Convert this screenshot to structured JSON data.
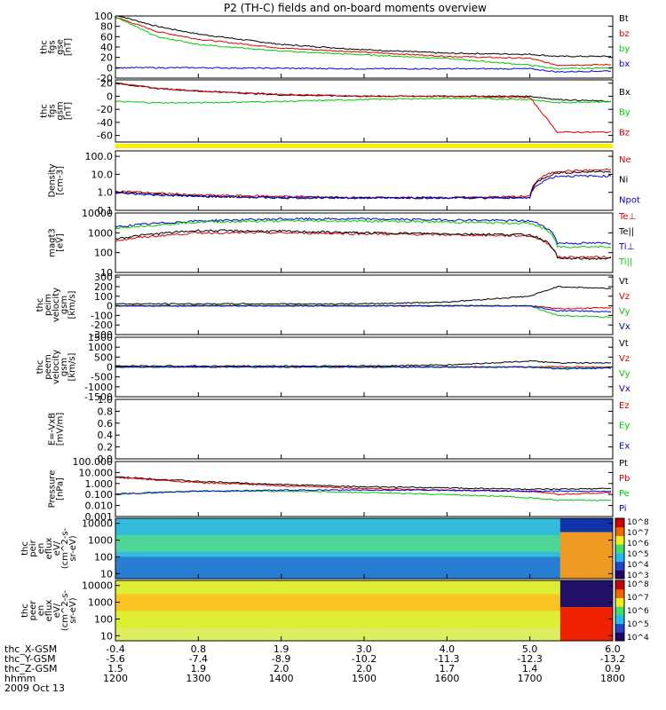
{
  "title": "P2 (TH-C) fields and on-board moments overview",
  "colors": {
    "black": "#000000",
    "red": "#dd0000",
    "green": "#00cc00",
    "blue": "#0000dd",
    "yellow": "#ffee00"
  },
  "chart_data": [
    {
      "type": "line",
      "panel": "fgs_gse",
      "ylabel": [
        "thc",
        "fgs",
        "gse",
        "[nT]"
      ],
      "ylim": [
        -20,
        100
      ],
      "yticks": [
        -20,
        0,
        20,
        40,
        60,
        80,
        100
      ],
      "x": [
        "1200",
        "1230",
        "1300",
        "1400",
        "1500",
        "1600",
        "1700",
        "1720",
        "1800"
      ],
      "series": [
        {
          "name": "Bt",
          "color": "#000000",
          "values": [
            102,
            80,
            65,
            45,
            35,
            28,
            26,
            22,
            22
          ]
        },
        {
          "name": "bz",
          "color": "#dd0000",
          "values": [
            98,
            70,
            55,
            38,
            30,
            22,
            18,
            5,
            6
          ]
        },
        {
          "name": "by",
          "color": "#00cc00",
          "values": [
            98,
            60,
            45,
            32,
            25,
            18,
            5,
            -2,
            0
          ]
        },
        {
          "name": "bx",
          "color": "#0000dd",
          "values": [
            0,
            0,
            0,
            -1,
            -2,
            -2,
            -2,
            -8,
            -6
          ]
        }
      ]
    },
    {
      "type": "line",
      "panel": "fgs_gsm",
      "ylabel": [
        "thc",
        "fgs",
        "gsm",
        "[nT]"
      ],
      "ylim": [
        -70,
        25
      ],
      "yticks": [
        -60,
        -40,
        -20,
        0,
        20
      ],
      "x": [
        "1200",
        "1230",
        "1300",
        "1400",
        "1500",
        "1600",
        "1700",
        "1720",
        "1800"
      ],
      "series": [
        {
          "name": "Bx",
          "color": "#000000",
          "values": [
            20,
            12,
            8,
            2,
            0,
            0,
            0,
            -5,
            -8
          ]
        },
        {
          "name": "By",
          "color": "#00cc00",
          "values": [
            -8,
            -10,
            -10,
            -8,
            -5,
            -3,
            -5,
            -10,
            -8
          ]
        },
        {
          "name": "Bz",
          "color": "#dd0000",
          "values": [
            20,
            12,
            8,
            3,
            0,
            0,
            -2,
            -55,
            -55
          ]
        }
      ]
    },
    {
      "type": "line",
      "panel": "density",
      "ylabel": [
        "Density",
        "[cm-3]"
      ],
      "yscale": "log",
      "ylim": [
        0.1,
        200
      ],
      "yticks": [
        "0.1",
        "1.0",
        "10.0",
        "100.0"
      ],
      "x": [
        "1200",
        "1230",
        "1300",
        "1400",
        "1500",
        "1600",
        "1700",
        "1720",
        "1800"
      ],
      "series": [
        {
          "name": "Ne",
          "color": "#dd0000",
          "values": [
            1.2,
            0.9,
            0.7,
            0.6,
            0.5,
            0.5,
            0.6,
            15,
            18
          ]
        },
        {
          "name": "Ni",
          "color": "#000000",
          "values": [
            1.0,
            0.8,
            0.6,
            0.5,
            0.5,
            0.5,
            0.5,
            12,
            15
          ]
        },
        {
          "name": "Npot",
          "color": "#0000dd",
          "values": [
            0.9,
            0.7,
            0.6,
            0.5,
            0.5,
            0.5,
            0.5,
            8,
            8
          ]
        }
      ]
    },
    {
      "type": "line",
      "panel": "temperature",
      "ylabel": [
        "magt3",
        "[eV]"
      ],
      "yscale": "log",
      "ylim": [
        10,
        10000
      ],
      "yticks": [
        "10",
        "100",
        "1000",
        "10000"
      ],
      "x": [
        "1200",
        "1230",
        "1300",
        "1400",
        "1500",
        "1600",
        "1700",
        "1720",
        "1800"
      ],
      "series": [
        {
          "name": "Te⊥",
          "color": "#dd0000",
          "values": [
            400,
            700,
            1000,
            1000,
            900,
            800,
            700,
            60,
            60
          ]
        },
        {
          "name": "Te||",
          "color": "#000000",
          "values": [
            500,
            900,
            1300,
            1200,
            1000,
            900,
            800,
            50,
            50
          ]
        },
        {
          "name": "Ti⊥",
          "color": "#0000dd",
          "values": [
            2000,
            3000,
            4000,
            5000,
            5000,
            4500,
            4000,
            300,
            300
          ]
        },
        {
          "name": "Ti||",
          "color": "#00cc00",
          "values": [
            1800,
            2500,
            3500,
            4000,
            4000,
            3500,
            3000,
            200,
            200
          ]
        }
      ]
    },
    {
      "type": "line",
      "panel": "peim_velocity",
      "ylabel": [
        "thc",
        "peim",
        "velocity",
        "gsm",
        "[km/s]"
      ],
      "ylim": [
        -300,
        320
      ],
      "yticks": [
        -300,
        -200,
        -100,
        0,
        100,
        200,
        300
      ],
      "x": [
        "1200",
        "1230",
        "1300",
        "1400",
        "1500",
        "1600",
        "1700",
        "1720",
        "1800"
      ],
      "series": [
        {
          "name": "Vt",
          "color": "#000000",
          "values": [
            20,
            20,
            20,
            20,
            20,
            40,
            100,
            200,
            180
          ]
        },
        {
          "name": "Vz",
          "color": "#dd0000",
          "values": [
            0,
            0,
            0,
            0,
            0,
            0,
            0,
            -30,
            -20
          ]
        },
        {
          "name": "Vy",
          "color": "#00cc00",
          "values": [
            0,
            0,
            0,
            0,
            0,
            0,
            0,
            -100,
            -120
          ]
        },
        {
          "name": "Vx",
          "color": "#0000dd",
          "values": [
            0,
            0,
            0,
            0,
            0,
            0,
            0,
            -50,
            -60
          ]
        }
      ]
    },
    {
      "type": "line",
      "panel": "peem_velocity",
      "ylabel": [
        "thc",
        "peem",
        "velocity",
        "gsm",
        "[km/s]"
      ],
      "ylim": [
        -1500,
        1500
      ],
      "yticks": [
        -1500,
        -1000,
        -500,
        0,
        500,
        1000,
        1500
      ],
      "x": [
        "1200",
        "1230",
        "1300",
        "1400",
        "1500",
        "1600",
        "1700",
        "1720",
        "1800"
      ],
      "series": [
        {
          "name": "Vt",
          "color": "#000000",
          "values": [
            50,
            50,
            50,
            50,
            50,
            100,
            300,
            200,
            200
          ]
        },
        {
          "name": "Vz",
          "color": "#dd0000",
          "values": [
            0,
            0,
            0,
            0,
            0,
            0,
            0,
            0,
            0
          ]
        },
        {
          "name": "Vy",
          "color": "#00cc00",
          "values": [
            0,
            0,
            0,
            0,
            0,
            0,
            0,
            -50,
            -50
          ]
        },
        {
          "name": "Vx",
          "color": "#0000dd",
          "values": [
            0,
            0,
            0,
            0,
            0,
            0,
            0,
            -100,
            -50
          ]
        }
      ]
    },
    {
      "type": "line",
      "panel": "efield",
      "ylabel": [
        "E=-VxB",
        "[mV/m]"
      ],
      "ylim": [
        0,
        1
      ],
      "yticks": [
        "0.0",
        "0.2",
        "0.4",
        "0.6",
        "0.8",
        "1.0"
      ],
      "x": [],
      "series": [
        {
          "name": "Ez",
          "color": "#dd0000",
          "values": []
        },
        {
          "name": "Ey",
          "color": "#00cc00",
          "values": []
        },
        {
          "name": "Ex",
          "color": "#0000dd",
          "values": []
        }
      ]
    },
    {
      "type": "line",
      "panel": "pressure",
      "ylabel": [
        "Pressure",
        "[nPa]"
      ],
      "yscale": "log",
      "ylim": [
        0.001,
        100
      ],
      "yticks": [
        "0.001",
        "0.010",
        "0.100",
        "1.000",
        "10.000",
        "100.000"
      ],
      "x": [
        "1200",
        "1230",
        "1300",
        "1400",
        "1500",
        "1600",
        "1700",
        "1720",
        "1800"
      ],
      "series": [
        {
          "name": "Pt",
          "color": "#000000",
          "values": [
            4.0,
            2.5,
            1.5,
            0.8,
            0.5,
            0.4,
            0.3,
            0.3,
            0.35
          ]
        },
        {
          "name": "Pb",
          "color": "#dd0000",
          "values": [
            3.5,
            2.0,
            1.2,
            0.6,
            0.35,
            0.25,
            0.2,
            0.1,
            0.15
          ]
        },
        {
          "name": "Pe",
          "color": "#00cc00",
          "values": [
            0.1,
            0.15,
            0.2,
            0.2,
            0.15,
            0.1,
            0.05,
            0.03,
            0.03
          ]
        },
        {
          "name": "Pi",
          "color": "#0000dd",
          "values": [
            0.12,
            0.15,
            0.2,
            0.25,
            0.25,
            0.25,
            0.2,
            0.2,
            0.2
          ]
        }
      ]
    },
    {
      "type": "heatmap",
      "panel": "peir_spectrogram",
      "ylabel": [
        "thc",
        "peir",
        "en",
        "eflux",
        "eV/",
        "(cm^2-s-",
        "sr-eV)"
      ],
      "yscale": "log",
      "ylim": [
        5,
        20000
      ],
      "yticks": [
        "10",
        "100",
        "1000",
        "10000"
      ],
      "colorbar_ticks": [
        "10^3",
        "10^4",
        "10^5",
        "10^6",
        "10^7",
        "10^8"
      ]
    },
    {
      "type": "heatmap",
      "panel": "peer_spectrogram",
      "ylabel": [
        "thc",
        "peer",
        "en",
        "eflux",
        "eV/",
        "(cm^2-s-",
        "sr-eV)"
      ],
      "yscale": "log",
      "ylim": [
        5,
        20000
      ],
      "yticks": [
        "10",
        "100",
        "1000",
        "10000"
      ],
      "colorbar_ticks": [
        "10^4",
        "10^5",
        "10^6",
        "10^7",
        "10^8"
      ]
    }
  ],
  "x_axis": {
    "row_labels": [
      "thc_X-GSM",
      "thc_Y-GSM",
      "thc_Z-GSM",
      "hhmm",
      "2009 Oct 13"
    ],
    "columns": [
      {
        "x": "-0.4",
        "y": "-5.6",
        "z": "1.5",
        "t": "1200"
      },
      {
        "x": "0.8",
        "y": "-7.4",
        "z": "1.9",
        "t": "1300"
      },
      {
        "x": "1.9",
        "y": "-8.9",
        "z": "2.0",
        "t": "1400"
      },
      {
        "x": "3.0",
        "y": "-10.2",
        "z": "2.0",
        "t": "1500"
      },
      {
        "x": "4.0",
        "y": "-11.3",
        "z": "1.7",
        "t": "1600"
      },
      {
        "x": "5.0",
        "y": "-12.3",
        "z": "1.4",
        "t": "1700"
      },
      {
        "x": "6.0",
        "y": "-13.2",
        "z": "0.9",
        "t": "1800"
      }
    ]
  }
}
